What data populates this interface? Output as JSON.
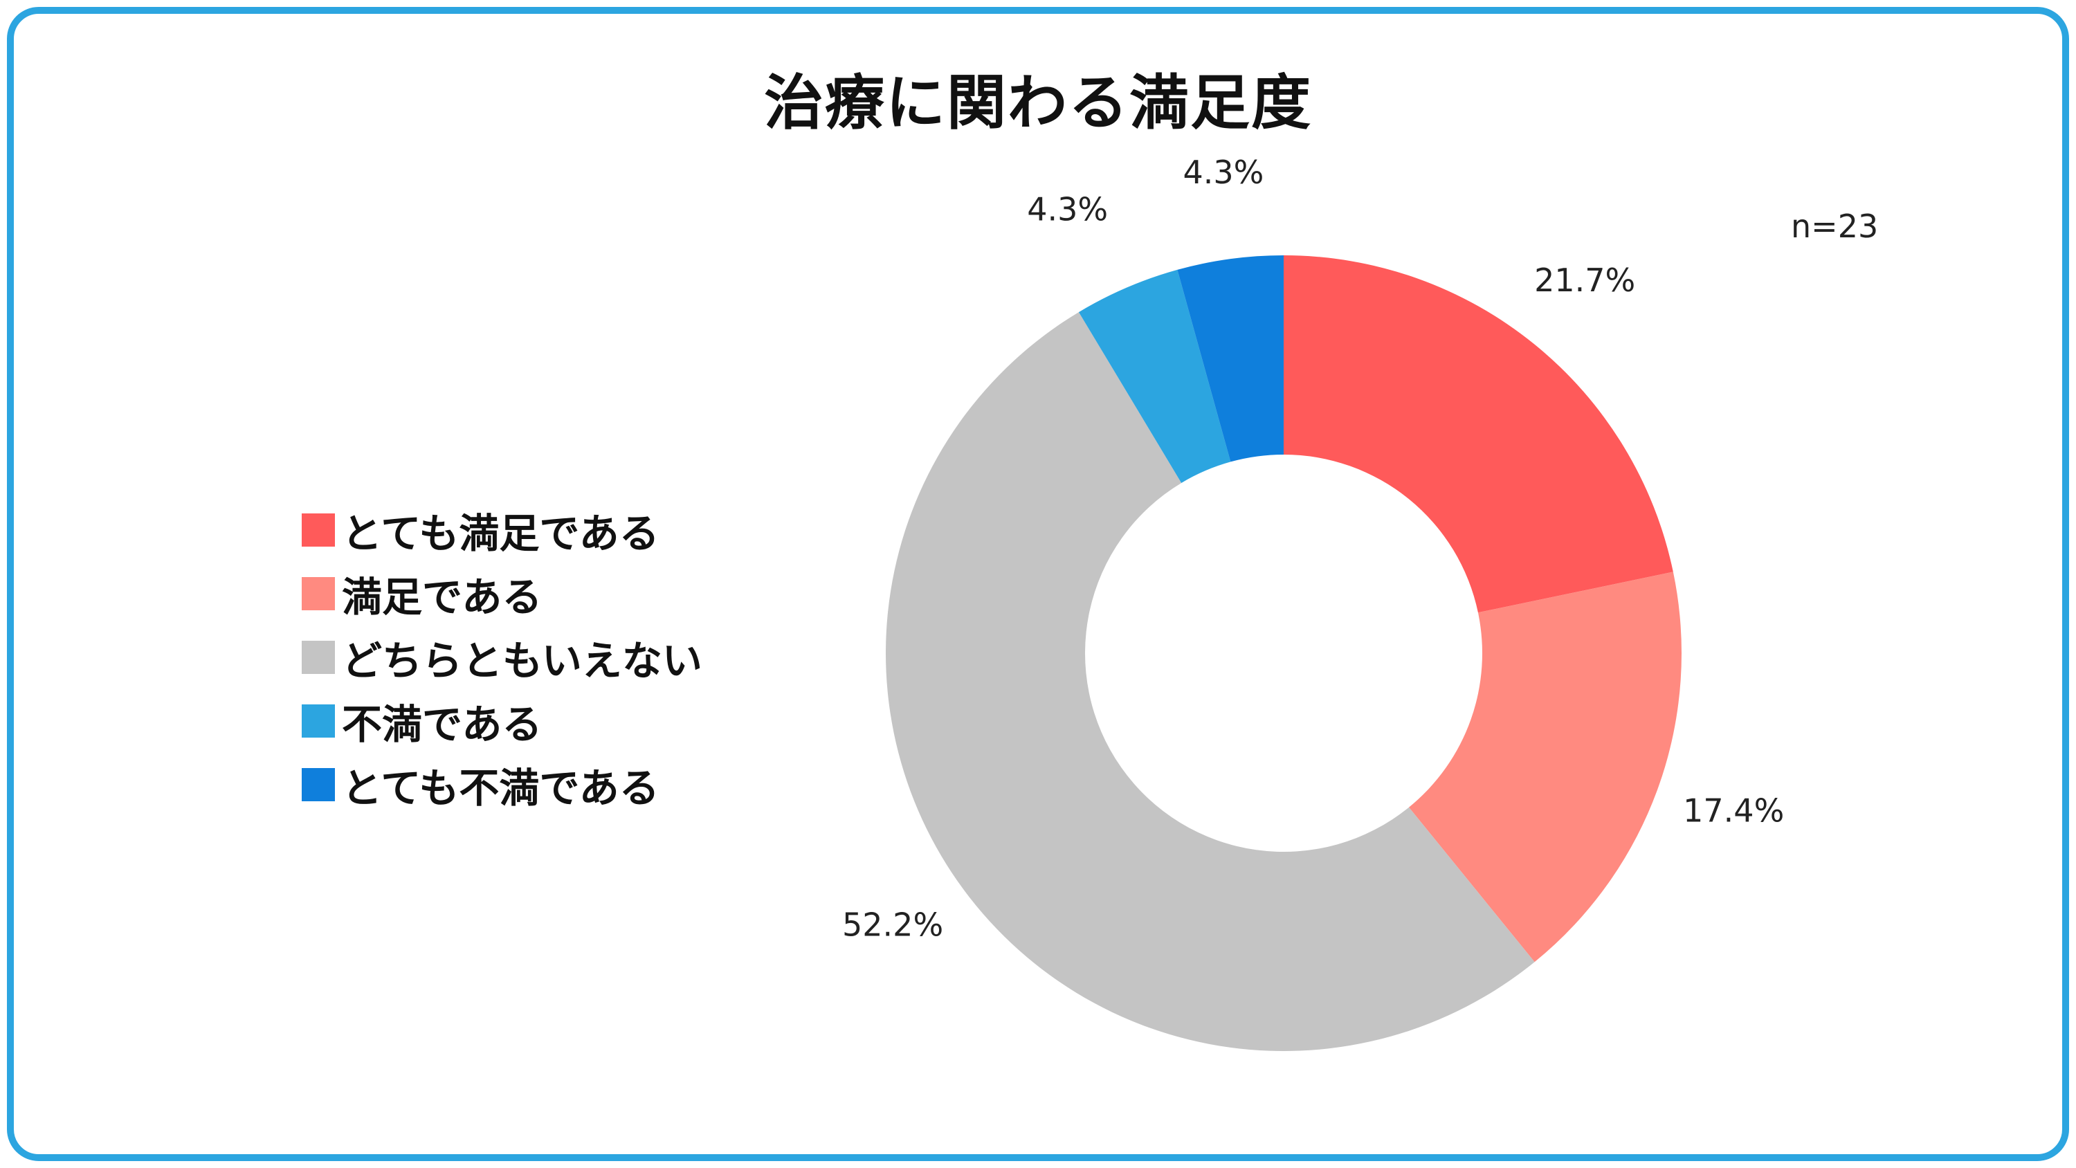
{
  "colors": {
    "frame": "#2ca5e0",
    "very_satisfied": "#ff5a5a",
    "satisfied": "#ff8a80",
    "neutral": "#c4c4c4",
    "dissatisfied": "#2ca5e0",
    "very_dissatisfied": "#0f7fdc"
  },
  "chart_data": {
    "type": "pie",
    "title": "治療に関わる満足度",
    "annotation": "n=23",
    "categories": [
      "とても満足である",
      "満足である",
      "どちらともいえない",
      "不満である",
      "とても不満である"
    ],
    "values": [
      21.7,
      17.4,
      52.2,
      4.3,
      4.3
    ],
    "labels": [
      "21.7%",
      "17.4%",
      "52.2%",
      "4.3%",
      "4.3%"
    ],
    "colors": [
      "#ff5a5a",
      "#ff8a80",
      "#c4c4c4",
      "#2ca5e0",
      "#0f7fdc"
    ],
    "donut": true,
    "legend_position": "left"
  }
}
